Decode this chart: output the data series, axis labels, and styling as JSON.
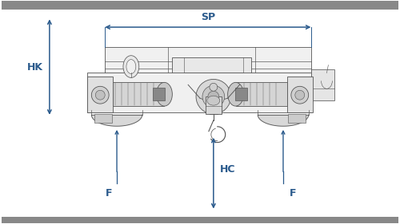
{
  "bg_color": "#ffffff",
  "line_color": "#555555",
  "dim_color": "#2a5a8c",
  "sp_label": "SP",
  "hk_label": "HK",
  "hc_label": "HC",
  "f_label": "F",
  "figsize": [
    5.0,
    2.81
  ],
  "dpi": 100
}
